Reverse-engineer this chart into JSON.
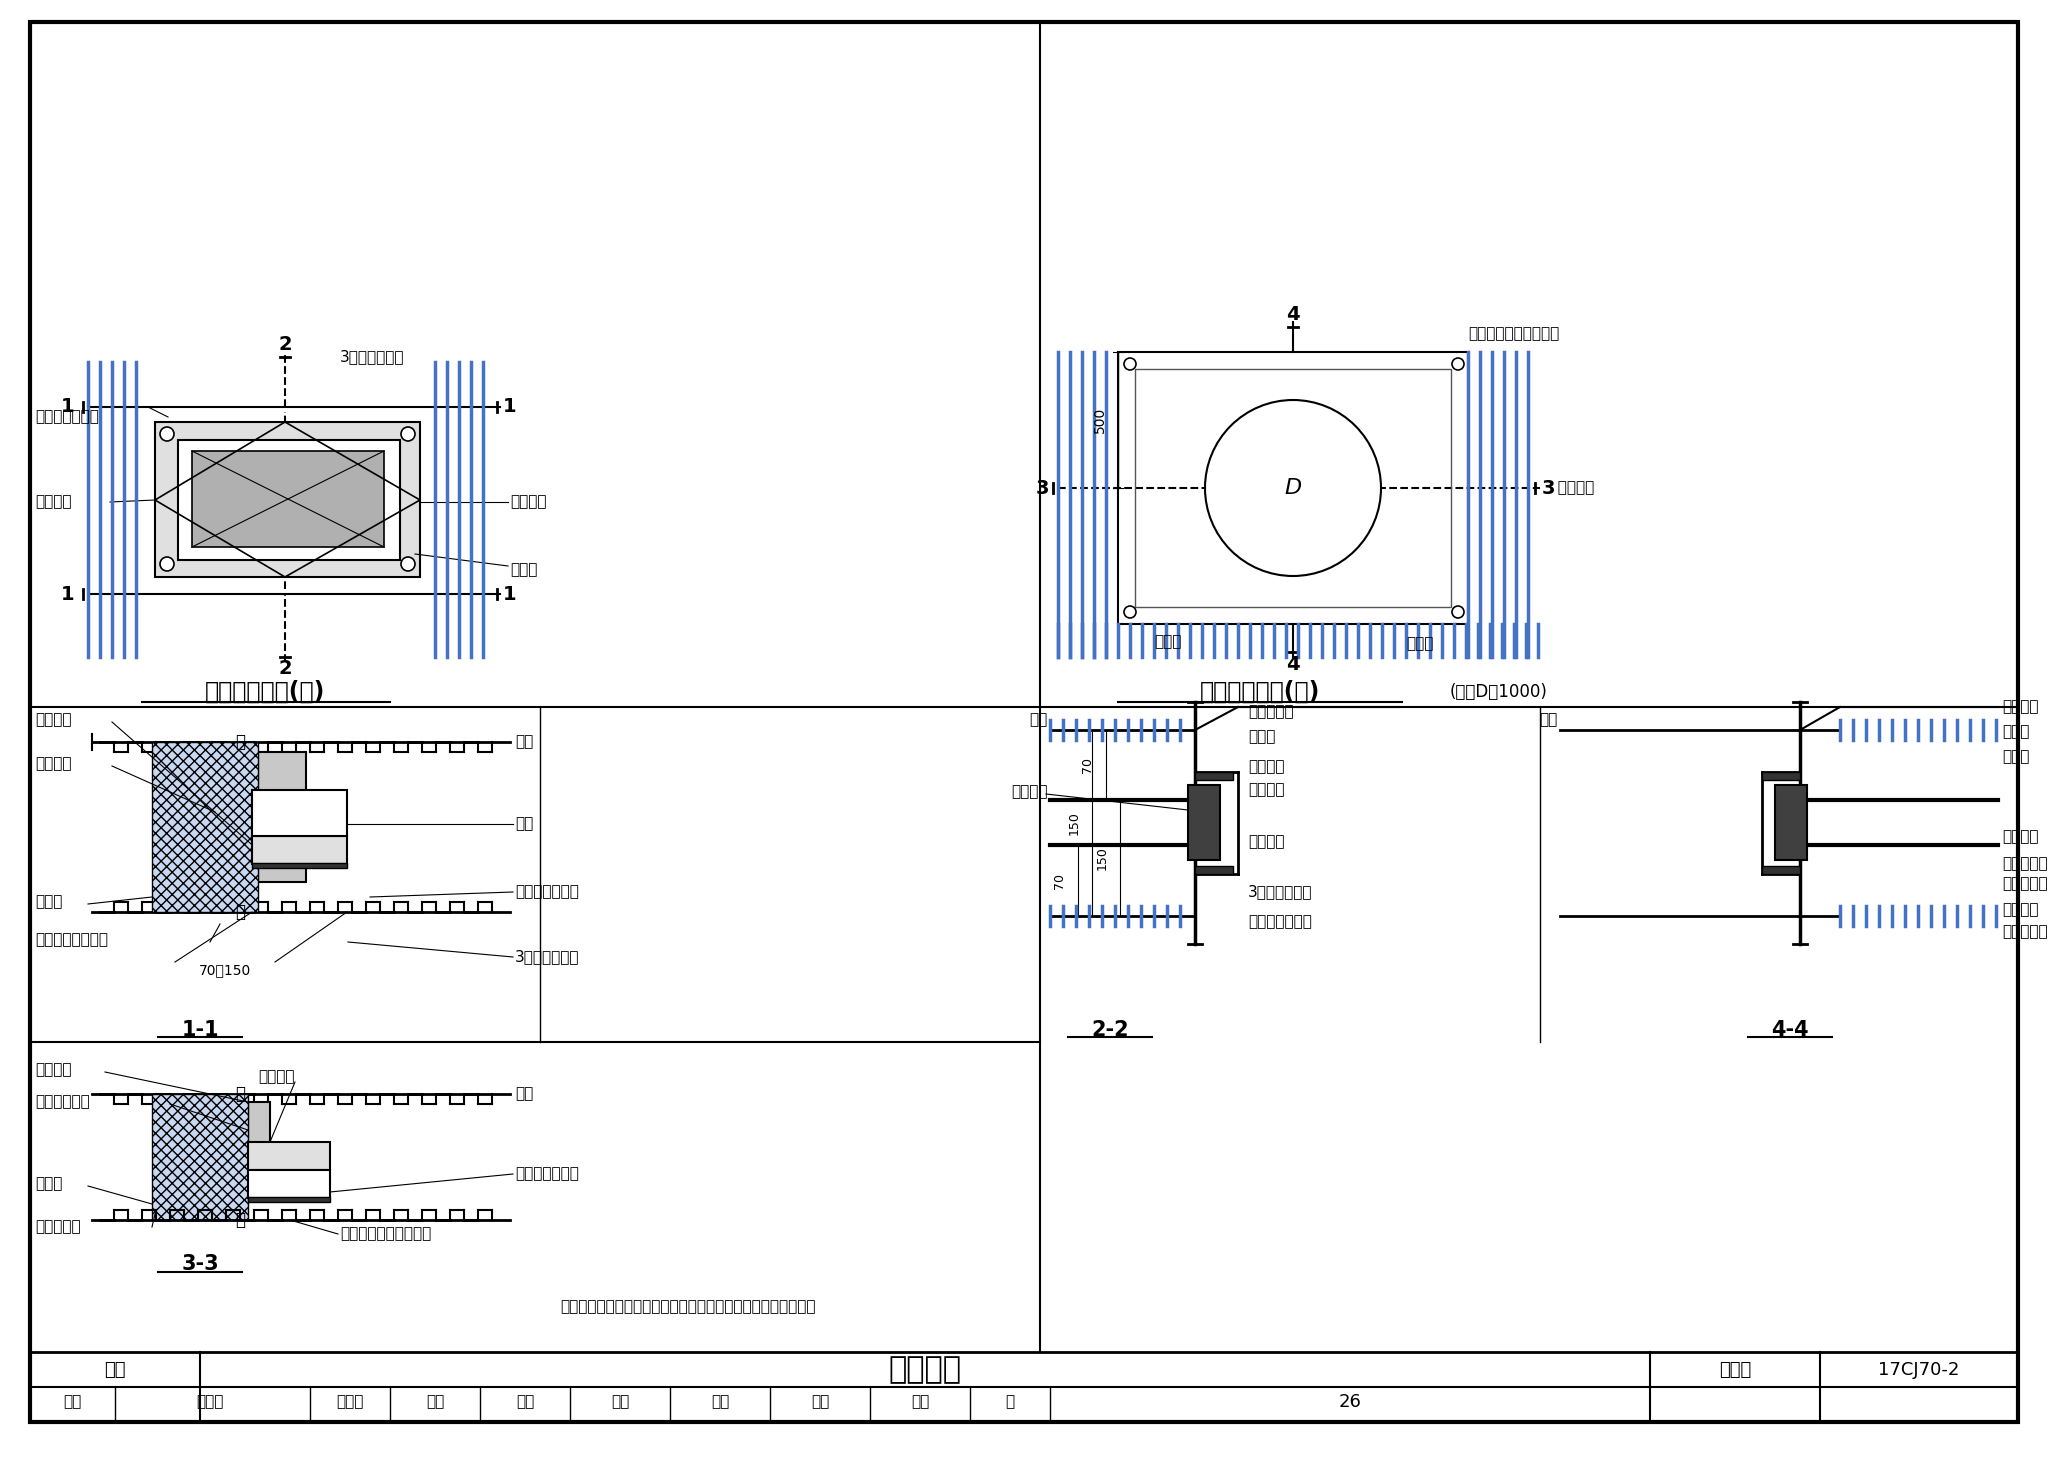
{
  "title": "出墙管道",
  "fig_number": "17CJ70-2",
  "page": "26",
  "category": "墙体",
  "background_color": "#FFFFFF",
  "border_color": "#000000",
  "line_color": "#000000",
  "blue_color": "#4472C4",
  "light_blue": "#AABFDF",
  "diagram1_title": "构件穿墙做法(一)",
  "diagram2_title": "构件穿墙做法(二)",
  "diagram2_subtitle": "(用于D＞1000)",
  "section11": "1-1",
  "section33": "3-3",
  "section22": "2-2",
  "section44": "4-4",
  "note": "注：穿墙构件应另设固定支架，不可通过封口板及外墙板承重。"
}
